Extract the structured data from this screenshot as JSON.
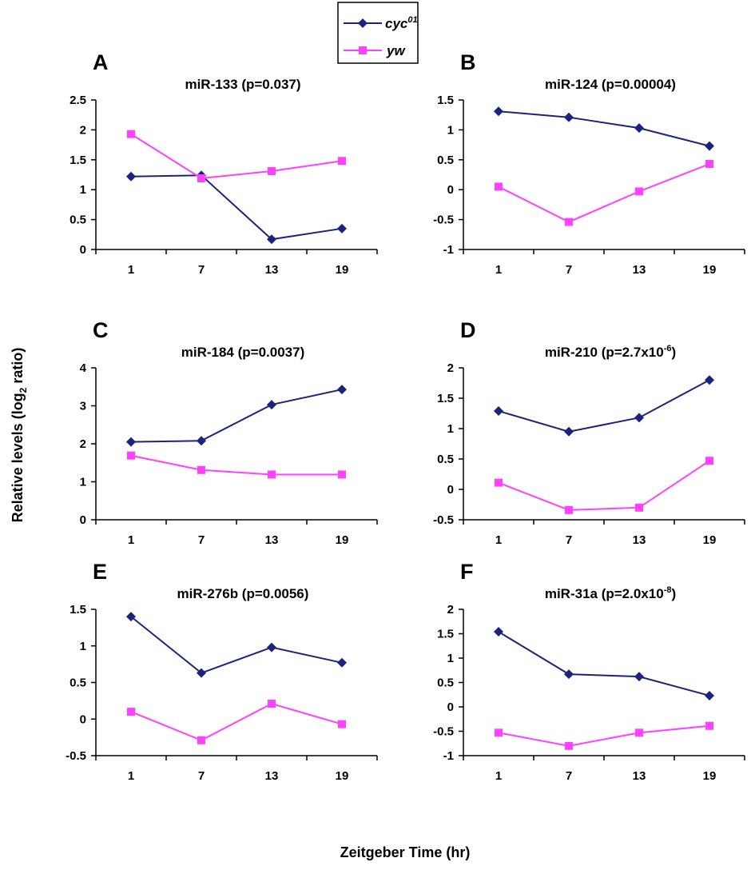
{
  "figure": {
    "ylabel_main": "Relative levels (log",
    "ylabel_sub": "2",
    "ylabel_tail": " ratio)",
    "xlabel": "Zeitgeber Time (hr)",
    "legend": [
      {
        "name": "cyc",
        "sup": "01",
        "color": "#1a237e",
        "marker": "diamond"
      },
      {
        "name": "yw",
        "sup": "",
        "color": "#ff40ff",
        "marker": "square"
      }
    ]
  },
  "chart_data": [
    {
      "type": "line",
      "panel": "A",
      "title_main": "miR-133 (p=0.037)",
      "title_sup": "",
      "title_tail": "",
      "categories": [
        "1",
        "7",
        "13",
        "19"
      ],
      "ylim": [
        0,
        2.5
      ],
      "yticks": [
        "0",
        "0.5",
        "1",
        "1.5",
        "2",
        "2.5"
      ],
      "ytick_values": [
        0,
        0.5,
        1,
        1.5,
        2,
        2.5
      ],
      "series": [
        {
          "name": "cyc01",
          "values": [
            1.22,
            1.24,
            0.17,
            0.35
          ]
        },
        {
          "name": "yw",
          "values": [
            1.93,
            1.19,
            1.31,
            1.48
          ]
        }
      ]
    },
    {
      "type": "line",
      "panel": "B",
      "title_main": "miR-124 (p=0.00004)",
      "title_sup": "",
      "title_tail": "",
      "categories": [
        "1",
        "7",
        "13",
        "19"
      ],
      "ylim": [
        -1,
        1.5
      ],
      "yticks": [
        "-1",
        "-0.5",
        "0",
        "0.5",
        "1",
        "1.5"
      ],
      "ytick_values": [
        -1,
        -0.5,
        0,
        0.5,
        1,
        1.5
      ],
      "series": [
        {
          "name": "cyc01",
          "values": [
            1.31,
            1.21,
            1.03,
            0.73
          ]
        },
        {
          "name": "yw",
          "values": [
            0.05,
            -0.54,
            -0.03,
            0.43
          ]
        }
      ]
    },
    {
      "type": "line",
      "panel": "C",
      "title_main": "miR-184 (p=0.0037)",
      "title_sup": "",
      "title_tail": "",
      "categories": [
        "1",
        "7",
        "13",
        "19"
      ],
      "ylim": [
        0,
        4
      ],
      "yticks": [
        "0",
        "1",
        "2",
        "3",
        "4"
      ],
      "ytick_values": [
        0,
        1,
        2,
        3,
        4
      ],
      "series": [
        {
          "name": "cyc01",
          "values": [
            2.05,
            2.08,
            3.03,
            3.43
          ]
        },
        {
          "name": "yw",
          "values": [
            1.69,
            1.31,
            1.19,
            1.19
          ]
        }
      ]
    },
    {
      "type": "line",
      "panel": "D",
      "title_main": "miR-210 (p=2.7x10",
      "title_sup": "-6",
      "title_tail": ")",
      "categories": [
        "1",
        "7",
        "13",
        "19"
      ],
      "ylim": [
        -0.5,
        2
      ],
      "yticks": [
        "-0.5",
        "0",
        "0.5",
        "1",
        "1.5",
        "2"
      ],
      "ytick_values": [
        -0.5,
        0,
        0.5,
        1,
        1.5,
        2
      ],
      "series": [
        {
          "name": "cyc01",
          "values": [
            1.29,
            0.95,
            1.18,
            1.8
          ]
        },
        {
          "name": "yw",
          "values": [
            0.11,
            -0.34,
            -0.3,
            0.47
          ]
        }
      ]
    },
    {
      "type": "line",
      "panel": "E",
      "title_main": "miR-276b (p=0.0056)",
      "title_sup": "",
      "title_tail": "",
      "categories": [
        "1",
        "7",
        "13",
        "19"
      ],
      "ylim": [
        -0.5,
        1.5
      ],
      "yticks": [
        "-0.5",
        "0",
        "0.5",
        "1",
        "1.5"
      ],
      "ytick_values": [
        -0.5,
        0,
        0.5,
        1,
        1.5
      ],
      "series": [
        {
          "name": "cyc01",
          "values": [
            1.4,
            0.63,
            0.98,
            0.77
          ]
        },
        {
          "name": "yw",
          "values": [
            0.1,
            -0.29,
            0.21,
            -0.07
          ]
        }
      ]
    },
    {
      "type": "line",
      "panel": "F",
      "title_main": "miR-31a (p=2.0x10",
      "title_sup": "-8",
      "title_tail": ")",
      "categories": [
        "1",
        "7",
        "13",
        "19"
      ],
      "ylim": [
        -1,
        2
      ],
      "yticks": [
        "-1",
        "-0.5",
        "0",
        "0.5",
        "1",
        "1.5",
        "2"
      ],
      "ytick_values": [
        -1,
        -0.5,
        0,
        0.5,
        1,
        1.5,
        2
      ],
      "series": [
        {
          "name": "cyc01",
          "values": [
            1.54,
            0.67,
            0.62,
            0.23
          ]
        },
        {
          "name": "yw",
          "values": [
            -0.53,
            -0.8,
            -0.53,
            -0.39
          ]
        }
      ]
    }
  ]
}
